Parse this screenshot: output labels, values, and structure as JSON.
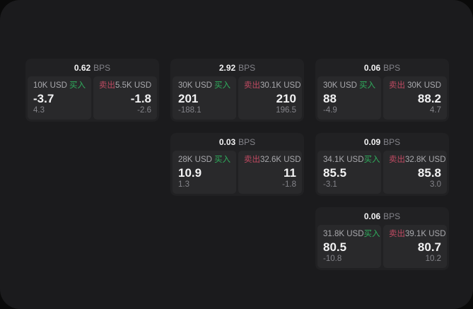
{
  "theme": {
    "page_bg": "#0a0a0a",
    "panel_bg": "#1b1b1d",
    "card_bg": "#212123",
    "pane_bg": "#29292b",
    "buy_color": "#2fae5d",
    "sell_color": "#c04a62",
    "text_primary": "#f2f2f3",
    "text_secondary": "#a9a9ad",
    "text_dim": "#84848a"
  },
  "labels": {
    "buy": "买入",
    "sell": "卖出",
    "bps_unit": "BPS"
  },
  "cards": [
    {
      "row": 1,
      "col": 1,
      "bps": "0.62",
      "buy": {
        "notional": "10K USD",
        "value": "-3.7",
        "delta": "4.3"
      },
      "sell": {
        "notional": "5.5K USD",
        "value": "-1.8",
        "delta": "-2.6"
      }
    },
    {
      "row": 1,
      "col": 2,
      "bps": "2.92",
      "buy": {
        "notional": "30K USD",
        "value": "201",
        "delta": "-188.1"
      },
      "sell": {
        "notional": "30.1K USD",
        "value": "210",
        "delta": "196.5"
      }
    },
    {
      "row": 1,
      "col": 3,
      "bps": "0.06",
      "buy": {
        "notional": "30K USD",
        "value": "88",
        "delta": "-4.9"
      },
      "sell": {
        "notional": "30K USD",
        "value": "88.2",
        "delta": "4.7"
      }
    },
    {
      "row": 2,
      "col": 2,
      "bps": "0.03",
      "buy": {
        "notional": "28K USD",
        "value": "10.9",
        "delta": "1.3"
      },
      "sell": {
        "notional": "32.6K USD",
        "value": "11",
        "delta": "-1.8"
      }
    },
    {
      "row": 2,
      "col": 3,
      "bps": "0.09",
      "buy": {
        "notional": "34.1K USD",
        "value": "85.5",
        "delta": "-3.1"
      },
      "sell": {
        "notional": "32.8K USD",
        "value": "85.8",
        "delta": "3.0"
      }
    },
    {
      "row": 3,
      "col": 3,
      "bps": "0.06",
      "buy": {
        "notional": "31.8K USD",
        "value": "80.5",
        "delta": "-10.8"
      },
      "sell": {
        "notional": "39.1K USD",
        "value": "80.7",
        "delta": "10.2"
      }
    }
  ]
}
